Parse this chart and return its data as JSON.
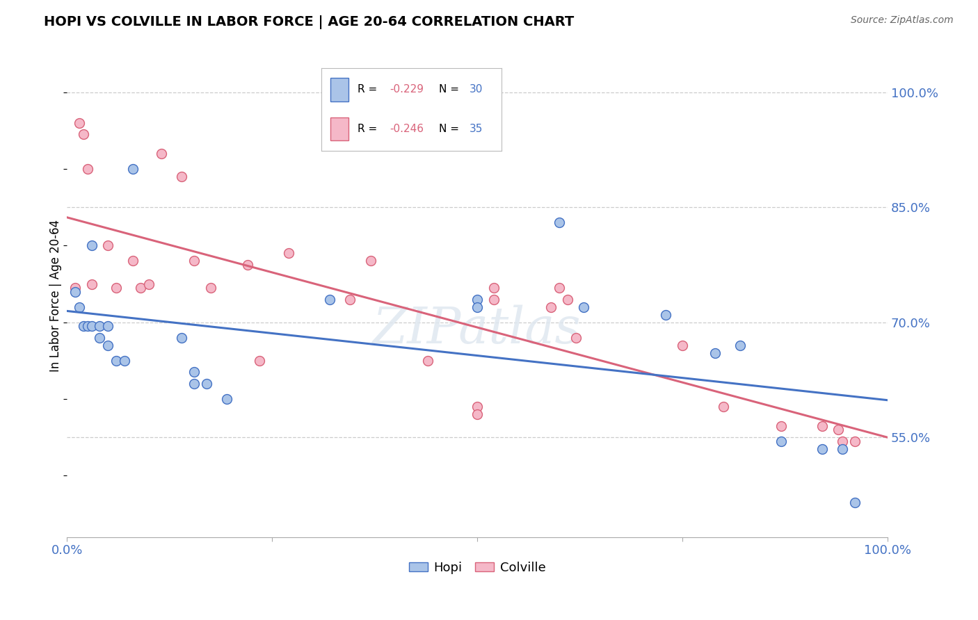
{
  "title": "HOPI VS COLVILLE IN LABOR FORCE | AGE 20-64 CORRELATION CHART",
  "source": "Source: ZipAtlas.com",
  "ylabel_label": "In Labor Force | Age 20-64",
  "xlim": [
    0.0,
    1.0
  ],
  "ylim": [
    0.42,
    1.05
  ],
  "x_ticks": [
    0.0,
    0.25,
    0.5,
    0.75,
    1.0
  ],
  "x_tick_labels": [
    "0.0%",
    "",
    "",
    "",
    "100.0%"
  ],
  "y_ticks": [
    0.55,
    0.7,
    0.85,
    1.0
  ],
  "y_tick_labels": [
    "55.0%",
    "70.0%",
    "85.0%",
    "100.0%"
  ],
  "hopi_color": "#aac4e8",
  "hopi_edge_color": "#4472c4",
  "colville_color": "#f5b8c8",
  "colville_edge_color": "#d9637a",
  "hopi_line_color": "#4472c4",
  "colville_line_color": "#d9637a",
  "grid_color": "#cccccc",
  "background_color": "#ffffff",
  "hopi_x": [
    0.01,
    0.015,
    0.02,
    0.025,
    0.03,
    0.03,
    0.04,
    0.04,
    0.05,
    0.05,
    0.06,
    0.07,
    0.08,
    0.14,
    0.155,
    0.155,
    0.17,
    0.195,
    0.32,
    0.5,
    0.5,
    0.6,
    0.63,
    0.73,
    0.79,
    0.82,
    0.87,
    0.92,
    0.945,
    0.96
  ],
  "hopi_y": [
    0.74,
    0.72,
    0.695,
    0.695,
    0.8,
    0.695,
    0.695,
    0.68,
    0.695,
    0.67,
    0.65,
    0.65,
    0.9,
    0.68,
    0.635,
    0.62,
    0.62,
    0.6,
    0.73,
    0.73,
    0.72,
    0.83,
    0.72,
    0.71,
    0.66,
    0.67,
    0.545,
    0.535,
    0.535,
    0.465
  ],
  "colville_x": [
    0.01,
    0.015,
    0.02,
    0.025,
    0.03,
    0.05,
    0.06,
    0.08,
    0.09,
    0.1,
    0.115,
    0.14,
    0.155,
    0.175,
    0.22,
    0.235,
    0.27,
    0.345,
    0.37,
    0.44,
    0.5,
    0.5,
    0.52,
    0.52,
    0.59,
    0.6,
    0.61,
    0.62,
    0.75,
    0.8,
    0.87,
    0.92,
    0.94,
    0.945,
    0.96
  ],
  "colville_y": [
    0.745,
    0.96,
    0.945,
    0.9,
    0.75,
    0.8,
    0.745,
    0.78,
    0.745,
    0.75,
    0.92,
    0.89,
    0.78,
    0.745,
    0.775,
    0.65,
    0.79,
    0.73,
    0.78,
    0.65,
    0.59,
    0.58,
    0.745,
    0.73,
    0.72,
    0.745,
    0.73,
    0.68,
    0.67,
    0.59,
    0.565,
    0.565,
    0.56,
    0.545,
    0.545
  ],
  "watermark": "ZIPatlas",
  "marker_size": 100,
  "marker_lw": 1.0
}
